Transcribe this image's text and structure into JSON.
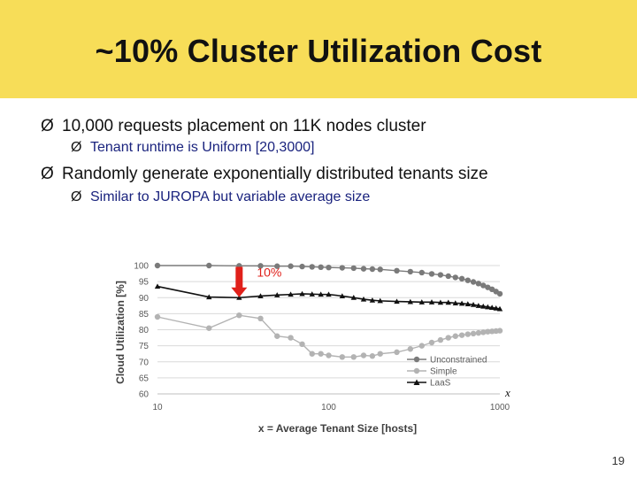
{
  "slide": {
    "title": "~10% Cluster Utilization Cost",
    "bullets": [
      "10,000 requests placement on 11K nodes cluster",
      "Tenant runtime is Uniform [20,3000]",
      "Randomly generate exponentially distributed tenants size",
      "Similar to JUROPA but variable average size"
    ],
    "bullet_glyph": "Ø",
    "page_number": "19"
  },
  "chart_data": {
    "type": "line",
    "xlabel": "x = Average Tenant Size [hosts]",
    "ylabel": "Cloud Utilization [%]",
    "x_scale": "log",
    "xlim": [
      10,
      1000
    ],
    "ylim": [
      60,
      100
    ],
    "x_ticks": [
      "10",
      "100",
      "1000"
    ],
    "y_ticks": [
      "60",
      "65",
      "70",
      "75",
      "80",
      "85",
      "90",
      "95",
      "100"
    ],
    "grid": true,
    "legend_position": "bottom-right",
    "x_axis_end_label": "x",
    "series": [
      {
        "name": "Unconstrained",
        "color": "#7a7a7a",
        "marker": "circle",
        "points": [
          [
            10,
            100
          ],
          [
            20,
            100
          ],
          [
            30,
            99.9
          ],
          [
            40,
            99.9
          ],
          [
            50,
            99.8
          ],
          [
            60,
            99.8
          ],
          [
            70,
            99.7
          ],
          [
            80,
            99.6
          ],
          [
            90,
            99.5
          ],
          [
            100,
            99.4
          ],
          [
            120,
            99.3
          ],
          [
            140,
            99.2
          ],
          [
            160,
            99.0
          ],
          [
            180,
            98.9
          ],
          [
            200,
            98.8
          ],
          [
            250,
            98.4
          ],
          [
            300,
            98.1
          ],
          [
            350,
            97.8
          ],
          [
            400,
            97.4
          ],
          [
            450,
            97.1
          ],
          [
            500,
            96.7
          ],
          [
            550,
            96.3
          ],
          [
            600,
            95.9
          ],
          [
            650,
            95.4
          ],
          [
            700,
            94.9
          ],
          [
            750,
            94.4
          ],
          [
            800,
            93.8
          ],
          [
            850,
            93.2
          ],
          [
            900,
            92.6
          ],
          [
            950,
            91.9
          ],
          [
            1000,
            91.2
          ]
        ]
      },
      {
        "name": "Simple",
        "color": "#b3b3b3",
        "marker": "circle",
        "points": [
          [
            10,
            84
          ],
          [
            20,
            80.5
          ],
          [
            30,
            84.5
          ],
          [
            40,
            83.5
          ],
          [
            50,
            78
          ],
          [
            60,
            77.5
          ],
          [
            70,
            75.5
          ],
          [
            80,
            72.5
          ],
          [
            90,
            72.5
          ],
          [
            100,
            72
          ],
          [
            120,
            71.5
          ],
          [
            140,
            71.5
          ],
          [
            160,
            72
          ],
          [
            180,
            71.8
          ],
          [
            200,
            72.5
          ],
          [
            250,
            73
          ],
          [
            300,
            74
          ],
          [
            350,
            75
          ],
          [
            400,
            76
          ],
          [
            450,
            76.8
          ],
          [
            500,
            77.5
          ],
          [
            550,
            78
          ],
          [
            600,
            78.3
          ],
          [
            650,
            78.6
          ],
          [
            700,
            78.8
          ],
          [
            750,
            79
          ],
          [
            800,
            79.2
          ],
          [
            850,
            79.4
          ],
          [
            900,
            79.5
          ],
          [
            950,
            79.6
          ],
          [
            1000,
            79.7
          ]
        ]
      },
      {
        "name": "LaaS",
        "color": "#111111",
        "marker": "triangle",
        "points": [
          [
            10,
            93.5
          ],
          [
            20,
            90.2
          ],
          [
            30,
            90
          ],
          [
            40,
            90.5
          ],
          [
            50,
            90.8
          ],
          [
            60,
            91
          ],
          [
            70,
            91.2
          ],
          [
            80,
            91.1
          ],
          [
            90,
            91
          ],
          [
            100,
            91
          ],
          [
            120,
            90.5
          ],
          [
            140,
            90
          ],
          [
            160,
            89.5
          ],
          [
            180,
            89.2
          ],
          [
            200,
            89
          ],
          [
            250,
            88.8
          ],
          [
            300,
            88.7
          ],
          [
            350,
            88.6
          ],
          [
            400,
            88.6
          ],
          [
            450,
            88.5
          ],
          [
            500,
            88.5
          ],
          [
            550,
            88.3
          ],
          [
            600,
            88.2
          ],
          [
            650,
            88
          ],
          [
            700,
            87.8
          ],
          [
            750,
            87.5
          ],
          [
            800,
            87.3
          ],
          [
            850,
            87.1
          ],
          [
            900,
            86.9
          ],
          [
            950,
            86.7
          ],
          [
            1000,
            86.5
          ]
        ]
      }
    ],
    "annotation": {
      "text": "10%",
      "x": 30,
      "color": "#e0201a"
    }
  }
}
